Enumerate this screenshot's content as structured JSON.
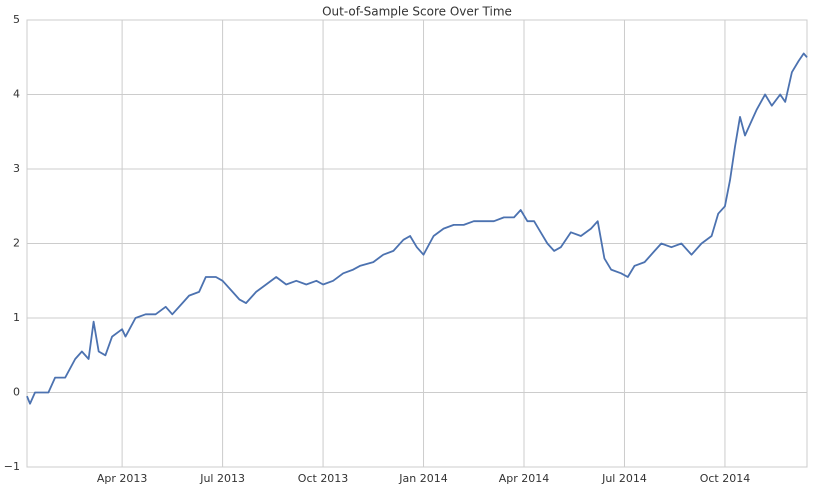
{
  "chart_data": {
    "type": "line",
    "title": "Out-of-Sample Score Over Time",
    "x": [
      0.16,
      0.25,
      0.4,
      0.6,
      0.8,
      1.0,
      1.3,
      1.6,
      1.8,
      2.0,
      2.15,
      2.3,
      2.5,
      2.7,
      3.0,
      3.1,
      3.4,
      3.7,
      4.0,
      4.3,
      4.5,
      4.8,
      5.0,
      5.3,
      5.5,
      5.8,
      6.0,
      6.3,
      6.5,
      6.7,
      7.0,
      7.3,
      7.6,
      7.9,
      8.2,
      8.5,
      8.8,
      9.0,
      9.3,
      9.6,
      9.9,
      10.1,
      10.5,
      10.8,
      11.1,
      11.4,
      11.6,
      11.8,
      12.0,
      12.3,
      12.6,
      12.9,
      13.2,
      13.5,
      13.8,
      14.1,
      14.4,
      14.7,
      14.9,
      15.1,
      15.3,
      15.5,
      15.7,
      15.9,
      16.1,
      16.4,
      16.7,
      17.0,
      17.2,
      17.4,
      17.6,
      17.9,
      18.1,
      18.3,
      18.6,
      18.9,
      19.1,
      19.4,
      19.7,
      20.0,
      20.3,
      20.6,
      20.8,
      21.0,
      21.15,
      21.3,
      21.45,
      21.6,
      21.8,
      21.95,
      22.2,
      22.4,
      22.65,
      22.8,
      23.0,
      23.2,
      23.35,
      23.45
    ],
    "series": [
      {
        "name": "Out-of-Sample Score",
        "color": "#4c72b0",
        "values": [
          -0.05,
          -0.15,
          0.0,
          0.0,
          0.0,
          0.2,
          0.2,
          0.45,
          0.55,
          0.45,
          0.95,
          0.55,
          0.5,
          0.75,
          0.85,
          0.75,
          1.0,
          1.05,
          1.05,
          1.15,
          1.05,
          1.2,
          1.3,
          1.35,
          1.55,
          1.55,
          1.5,
          1.35,
          1.25,
          1.2,
          1.35,
          1.45,
          1.55,
          1.45,
          1.5,
          1.45,
          1.5,
          1.45,
          1.5,
          1.6,
          1.65,
          1.7,
          1.75,
          1.85,
          1.9,
          2.05,
          2.1,
          1.95,
          1.85,
          2.1,
          2.2,
          2.25,
          2.25,
          2.3,
          2.3,
          2.3,
          2.35,
          2.35,
          2.45,
          2.3,
          2.3,
          2.15,
          2.0,
          1.9,
          1.95,
          2.15,
          2.1,
          2.2,
          2.3,
          1.8,
          1.65,
          1.6,
          1.55,
          1.7,
          1.75,
          1.9,
          2.0,
          1.95,
          2.0,
          1.85,
          2.0,
          2.1,
          2.4,
          2.5,
          2.85,
          3.3,
          3.7,
          3.45,
          3.65,
          3.8,
          4.0,
          3.85,
          4.0,
          3.9,
          4.3,
          4.45,
          4.55,
          4.5
        ]
      }
    ],
    "xlim": [
      0.16,
      23.45
    ],
    "xticks": [
      {
        "value": 3,
        "label": "Apr 2013"
      },
      {
        "value": 6,
        "label": "Jul 2013"
      },
      {
        "value": 9,
        "label": "Oct 2013"
      },
      {
        "value": 12,
        "label": "Jan 2014"
      },
      {
        "value": 15,
        "label": "Apr 2014"
      },
      {
        "value": 18,
        "label": "Jul 2014"
      },
      {
        "value": 21,
        "label": "Oct 2014"
      }
    ],
    "ylim": [
      -1,
      5
    ],
    "yticks": [
      {
        "value": -1,
        "label": "−1"
      },
      0,
      1,
      2,
      3,
      4,
      5
    ],
    "grid": true
  }
}
